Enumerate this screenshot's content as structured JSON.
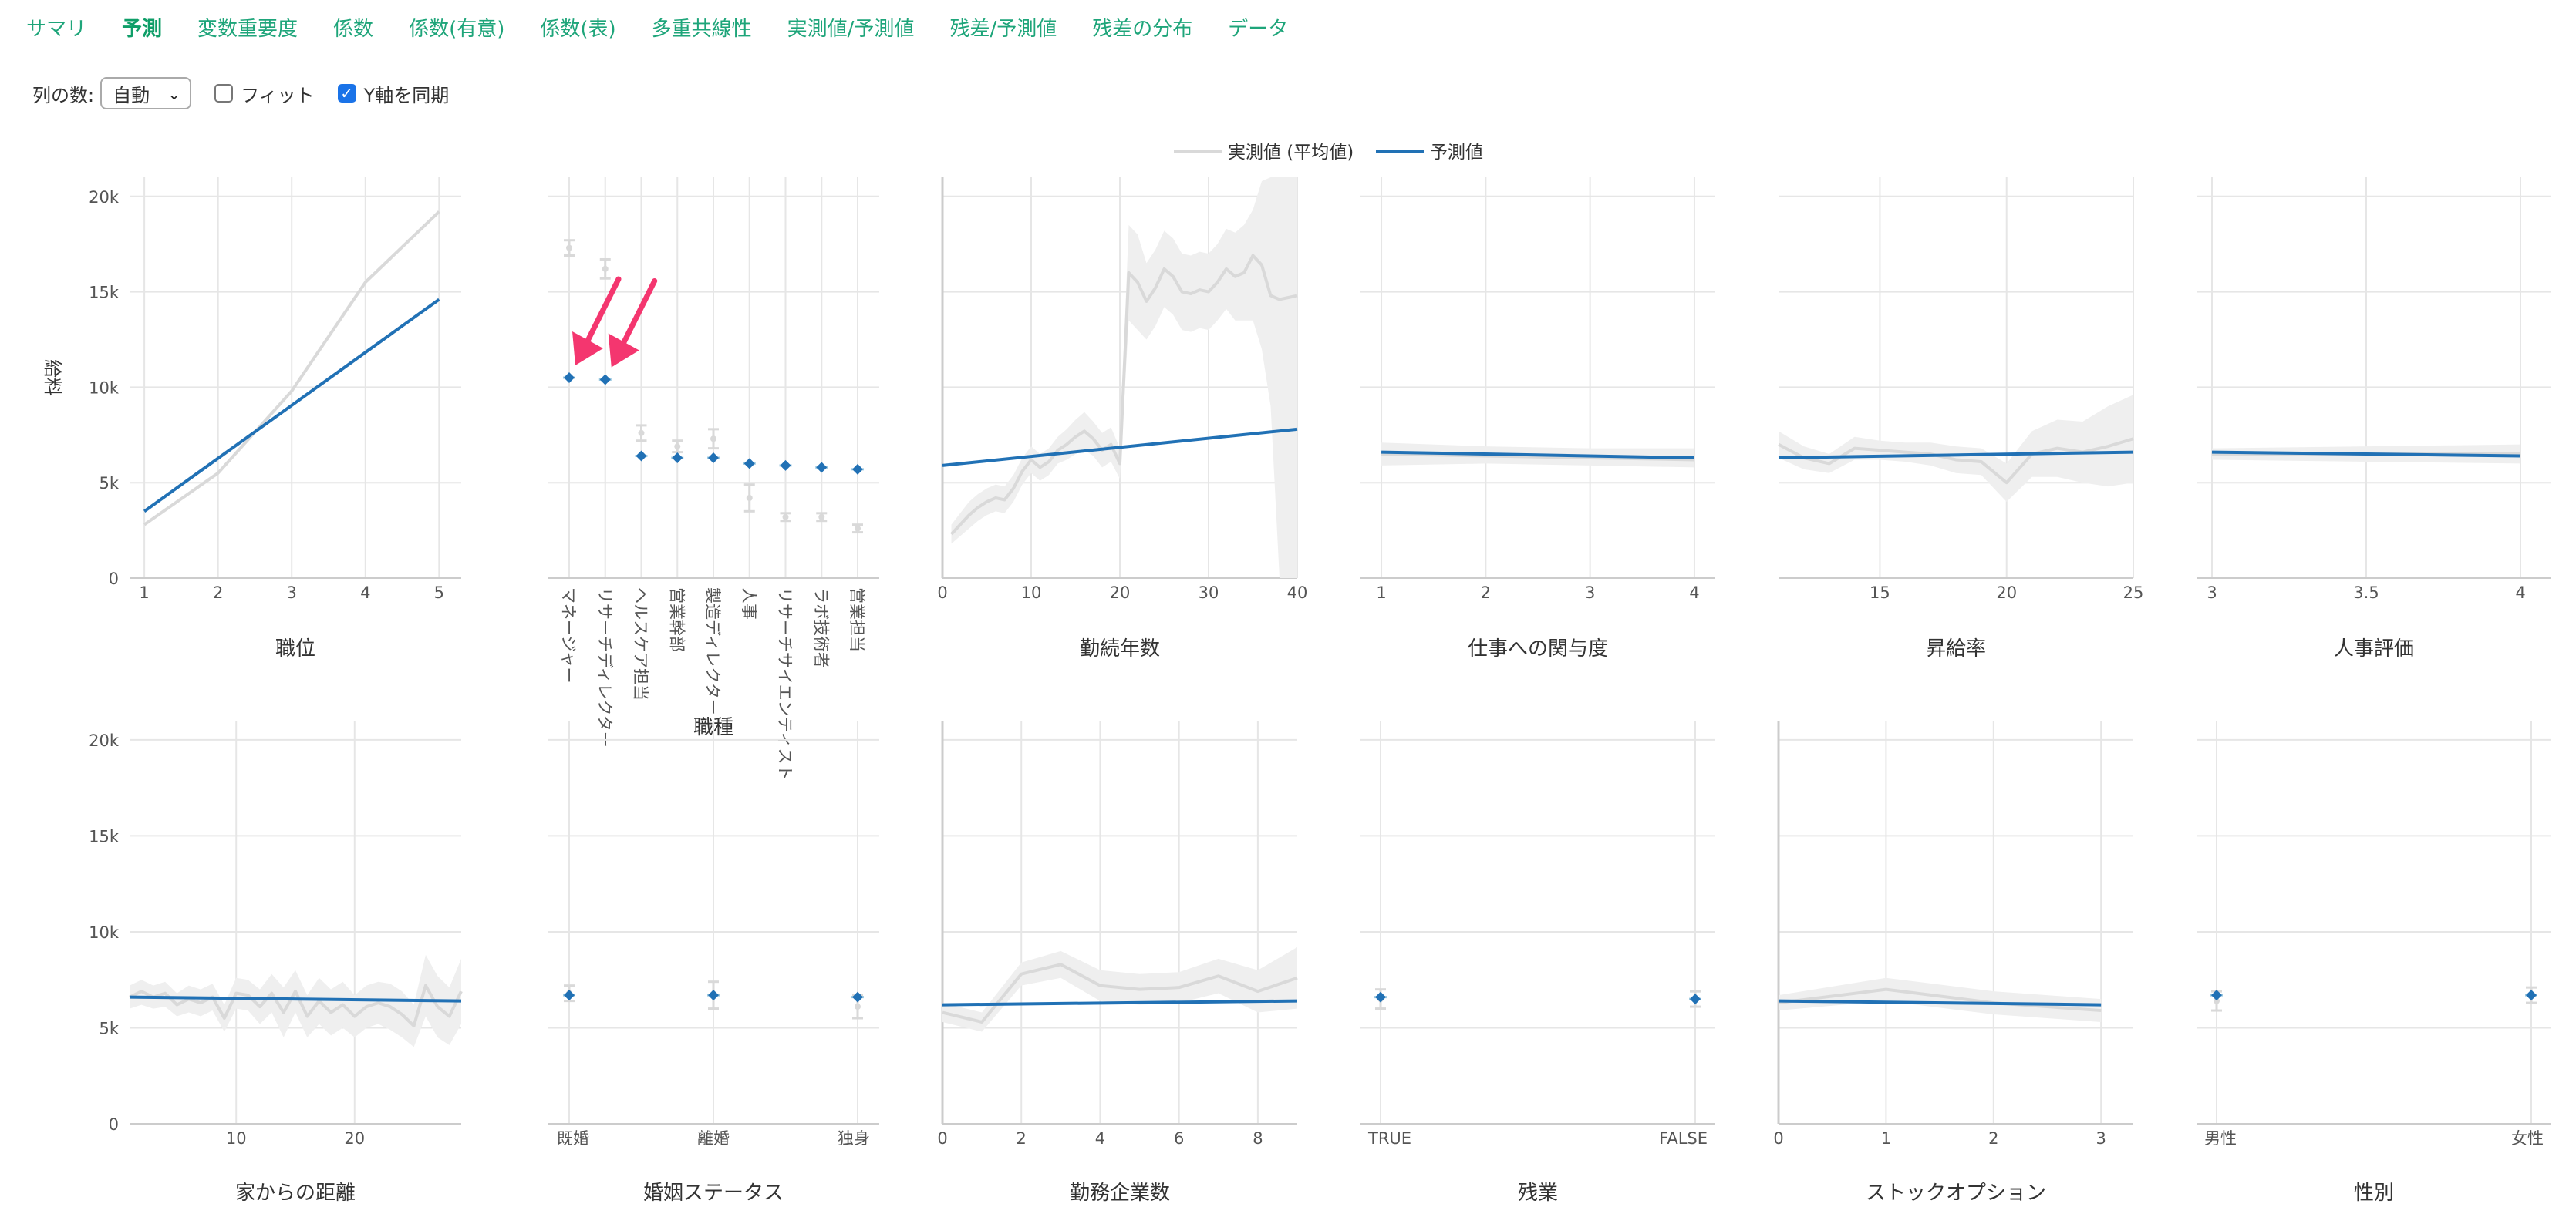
{
  "tabs": [
    {
      "label": "サマリ",
      "active": false
    },
    {
      "label": "予測",
      "active": true
    },
    {
      "label": "変数重要度",
      "active": false
    },
    {
      "label": "係数",
      "active": false
    },
    {
      "label": "係数(有意)",
      "active": false
    },
    {
      "label": "係数(表)",
      "active": false
    },
    {
      "label": "多重共線性",
      "active": false
    },
    {
      "label": "実測値/予測値",
      "active": false
    },
    {
      "label": "残差/予測値",
      "active": false
    },
    {
      "label": "残差の分布",
      "active": false
    },
    {
      "label": "データ",
      "active": false
    }
  ],
  "controls": {
    "columns_label": "列の数:",
    "columns_value": "自動",
    "fit_label": "フィット",
    "fit_checked": false,
    "sync_label": "Y軸を同期",
    "sync_checked": true
  },
  "legend": {
    "actual": "実測値 (平均値)",
    "predicted": "予測値"
  },
  "colors": {
    "actual": "#d9d9d9",
    "predicted": "#2171b5",
    "band": "#efefef",
    "grid": "#e6e6e6",
    "arrow": "#f4366f"
  },
  "y_axis": {
    "label": "給料",
    "ticks": [
      0,
      5000,
      10000,
      15000,
      20000
    ],
    "tick_labels": [
      "0",
      "5k",
      "10k",
      "15k",
      "20k"
    ],
    "range": [
      0,
      21000
    ]
  },
  "chart_data": [
    {
      "type": "line",
      "xlabel": "職位",
      "xlim": [
        0.8,
        5.3
      ],
      "xticks": [
        1,
        2,
        3,
        4,
        5
      ],
      "xtick_labels": [
        "1",
        "2",
        "3",
        "4",
        "5"
      ],
      "actual": {
        "x": [
          1,
          2,
          3,
          4,
          5
        ],
        "y": [
          2800,
          5500,
          9800,
          15500,
          19200
        ]
      },
      "predicted": {
        "x": [
          1,
          5
        ],
        "y": [
          3500,
          14600
        ]
      }
    },
    {
      "type": "categorical",
      "xlabel": "職種",
      "categories": [
        "マネージャー",
        "リサーチディレクター",
        "ヘルスケア担当",
        "営業幹部",
        "製造ディレクター",
        "人事",
        "リサーチサイエンティスト",
        "ラボ技術者",
        "営業担当"
      ],
      "actual": [
        17300,
        16200,
        7600,
        6900,
        7300,
        4200,
        3200,
        3200,
        2600
      ],
      "actual_err": [
        400,
        500,
        400,
        300,
        500,
        700,
        200,
        200,
        200
      ],
      "predicted": [
        10500,
        10400,
        6400,
        6300,
        6300,
        6000,
        5900,
        5800,
        5700
      ],
      "arrows_at": [
        0,
        1
      ]
    },
    {
      "type": "line",
      "xlabel": "勤続年数",
      "xlim": [
        0,
        40
      ],
      "xticks": [
        0,
        10,
        20,
        30,
        40
      ],
      "xtick_labels": [
        "0",
        "10",
        "20",
        "30",
        "40"
      ],
      "actual": {
        "x": [
          1,
          2,
          3,
          4,
          5,
          6,
          7,
          8,
          9,
          10,
          11,
          12,
          13,
          14,
          15,
          16,
          17,
          18,
          19,
          20,
          21,
          22,
          23,
          24,
          25,
          26,
          27,
          28,
          29,
          30,
          31,
          32,
          33,
          34,
          35,
          36,
          37,
          38,
          39,
          40
        ],
        "y": [
          2300,
          2800,
          3300,
          3700,
          4000,
          4200,
          4100,
          4700,
          5600,
          6200,
          5800,
          6100,
          6700,
          7000,
          7400,
          7700,
          7300,
          6700,
          7000,
          6000,
          16000,
          15500,
          14500,
          15200,
          16200,
          15800,
          15000,
          14900,
          15100,
          15000,
          15500,
          16200,
          15800,
          16000,
          16900,
          16400,
          14800,
          14600,
          14700,
          14800
        ]
      },
      "band": {
        "lower": [
          1800,
          2200,
          2600,
          3000,
          3300,
          3500,
          3400,
          4000,
          4900,
          5500,
          5100,
          5400,
          6000,
          6200,
          6500,
          6700,
          6400,
          5800,
          6100,
          5200,
          13500,
          13000,
          12500,
          13200,
          14200,
          13800,
          13000,
          12900,
          13100,
          13000,
          13500,
          14100,
          13500,
          13500,
          13500,
          12000,
          9000,
          0,
          0,
          0
        ],
        "upper": [
          2800,
          3400,
          4000,
          4400,
          4700,
          4900,
          4800,
          5400,
          6300,
          6900,
          6500,
          6800,
          7400,
          7800,
          8300,
          8700,
          8200,
          7600,
          7900,
          6800,
          18500,
          18000,
          16500,
          17200,
          18200,
          17800,
          17000,
          16900,
          17100,
          17000,
          17500,
          18300,
          18100,
          18500,
          19300,
          20800,
          21000,
          21000,
          21000,
          21000
        ]
      },
      "predicted": {
        "x": [
          0,
          40
        ],
        "y": [
          5900,
          7800
        ]
      }
    },
    {
      "type": "line",
      "xlabel": "仕事への関与度",
      "xlim": [
        0.8,
        4.2
      ],
      "xticks": [
        1,
        2,
        3,
        4
      ],
      "xtick_labels": [
        "1",
        "2",
        "3",
        "4"
      ],
      "actual": {
        "x": [
          1,
          2,
          3,
          4
        ],
        "y": [
          6500,
          6400,
          6300,
          6200
        ]
      },
      "band": {
        "lower": [
          5900,
          6000,
          5900,
          5800
        ],
        "upper": [
          7100,
          6900,
          6800,
          6800
        ]
      },
      "predicted": {
        "x": [
          1,
          4
        ],
        "y": [
          6600,
          6300
        ]
      }
    },
    {
      "type": "line",
      "xlabel": "昇給率",
      "xlim": [
        11,
        25
      ],
      "xticks": [
        15,
        20,
        25
      ],
      "xtick_labels": [
        "15",
        "20",
        "25"
      ],
      "actual": {
        "x": [
          11,
          12,
          13,
          14,
          15,
          16,
          17,
          18,
          19,
          20,
          21,
          22,
          23,
          24,
          25
        ],
        "y": [
          7000,
          6300,
          6000,
          6800,
          6700,
          6600,
          6500,
          6200,
          6100,
          5000,
          6500,
          6800,
          6600,
          6900,
          7300
        ]
      },
      "band": {
        "lower": [
          6300,
          5700,
          5500,
          6200,
          6200,
          6100,
          5900,
          5500,
          5400,
          4000,
          5300,
          5300,
          5000,
          4800,
          5000
        ],
        "upper": [
          7700,
          6900,
          6500,
          7400,
          7200,
          7100,
          7100,
          6900,
          6800,
          6000,
          7700,
          8300,
          8200,
          9000,
          9600
        ]
      },
      "predicted": {
        "x": [
          11,
          25
        ],
        "y": [
          6300,
          6600
        ]
      }
    },
    {
      "type": "line",
      "xlabel": "人事評価",
      "xlim": [
        2.95,
        4.1
      ],
      "xticks": [
        3,
        3.5,
        4
      ],
      "xtick_labels": [
        "3",
        "3.5",
        "4"
      ],
      "actual": {
        "x": [
          3,
          4
        ],
        "y": [
          6500,
          6500
        ]
      },
      "band": {
        "lower": [
          6200,
          6000
        ],
        "upper": [
          6800,
          7000
        ]
      },
      "predicted": {
        "x": [
          3,
          4
        ],
        "y": [
          6600,
          6400
        ]
      }
    },
    {
      "type": "line",
      "xlabel": "家からの距離",
      "xlim": [
        1,
        29
      ],
      "xticks": [
        10,
        20
      ],
      "xtick_labels": [
        "10",
        "20"
      ],
      "actual": {
        "x": [
          1,
          2,
          3,
          4,
          5,
          6,
          7,
          8,
          9,
          10,
          11,
          12,
          13,
          14,
          15,
          16,
          17,
          18,
          19,
          20,
          21,
          22,
          23,
          24,
          25,
          26,
          27,
          28,
          29
        ],
        "y": [
          6600,
          6900,
          6600,
          6800,
          6200,
          6500,
          6300,
          6600,
          5500,
          6800,
          6700,
          6100,
          6800,
          5800,
          6900,
          5600,
          6400,
          5800,
          6200,
          5600,
          6100,
          6300,
          6100,
          5700,
          5100,
          7200,
          6100,
          5600,
          6900
        ]
      },
      "band": {
        "lower": [
          6000,
          6200,
          6000,
          6100,
          5600,
          5800,
          5600,
          5900,
          4800,
          6000,
          5900,
          5200,
          5800,
          4500,
          5800,
          4500,
          5200,
          4600,
          5000,
          4500,
          5000,
          5200,
          4900,
          4500,
          4000,
          5600,
          4500,
          4100,
          5200
        ],
        "upper": [
          7200,
          7500,
          7200,
          7400,
          6800,
          7200,
          7000,
          7300,
          6200,
          7600,
          7500,
          7000,
          7800,
          7100,
          8000,
          6700,
          7600,
          7000,
          7400,
          6700,
          7200,
          7400,
          7300,
          6900,
          6200,
          8800,
          7700,
          7100,
          8600
        ]
      },
      "predicted": {
        "x": [
          1,
          29
        ],
        "y": [
          6600,
          6400
        ]
      }
    },
    {
      "type": "categorical",
      "xlabel": "婚姻ステータス",
      "categories": [
        "既婚",
        "離婚",
        "独身"
      ],
      "actual": [
        6800,
        6700,
        6100
      ],
      "actual_err": [
        400,
        700,
        600
      ],
      "predicted": [
        6700,
        6700,
        6600
      ],
      "arrows_at": []
    },
    {
      "type": "line",
      "xlabel": "勤務企業数",
      "xlim": [
        0,
        9
      ],
      "xticks": [
        0,
        2,
        4,
        6,
        8
      ],
      "xtick_labels": [
        "0",
        "2",
        "4",
        "6",
        "8"
      ],
      "actual": {
        "x": [
          0,
          1,
          2,
          3,
          4,
          5,
          6,
          7,
          8,
          9
        ],
        "y": [
          5800,
          5300,
          7800,
          8300,
          7200,
          7000,
          7100,
          7700,
          6900,
          7600
        ]
      },
      "band": {
        "lower": [
          5300,
          4800,
          7200,
          7600,
          6400,
          6200,
          6300,
          6800,
          5800,
          6000
        ],
        "upper": [
          6300,
          5800,
          8400,
          9000,
          8000,
          7800,
          7900,
          8600,
          8000,
          9200
        ]
      },
      "predicted": {
        "x": [
          0,
          9
        ],
        "y": [
          6200,
          6400
        ]
      }
    },
    {
      "type": "categorical",
      "xlabel": "残業",
      "categories": [
        "TRUE",
        "FALSE"
      ],
      "actual": [
        6500,
        6500
      ],
      "actual_err": [
        500,
        400
      ],
      "predicted": [
        6600,
        6500
      ],
      "arrows_at": []
    },
    {
      "type": "line",
      "xlabel": "ストックオプション",
      "xlim": [
        0,
        3.3
      ],
      "xticks": [
        0,
        1,
        2,
        3
      ],
      "xtick_labels": [
        "0",
        "1",
        "2",
        "3"
      ],
      "actual": {
        "x": [
          0,
          1,
          2,
          3
        ],
        "y": [
          6300,
          7000,
          6300,
          5900
        ]
      },
      "band": {
        "lower": [
          5900,
          6400,
          5700,
          5300
        ],
        "upper": [
          6700,
          7600,
          6900,
          6500
        ]
      },
      "predicted": {
        "x": [
          0,
          3
        ],
        "y": [
          6400,
          6200
        ]
      }
    },
    {
      "type": "categorical",
      "xlabel": "性別",
      "categories": [
        "男性",
        "女性"
      ],
      "actual": [
        6400,
        6700
      ],
      "actual_err": [
        500,
        400
      ],
      "predicted": [
        6700,
        6700
      ],
      "arrows_at": []
    }
  ]
}
